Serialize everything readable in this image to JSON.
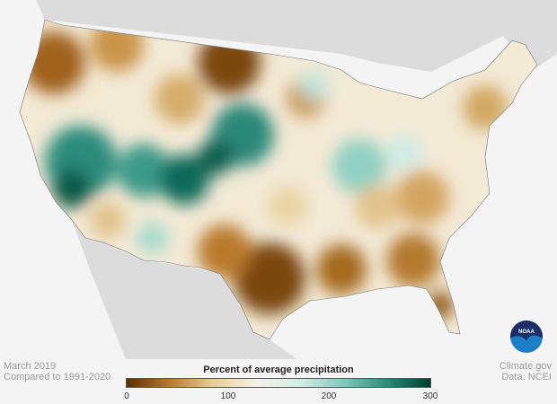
{
  "info": {
    "period": "March 2019",
    "baseline": "Compared to 1991-2020"
  },
  "credit": {
    "source": "Climate.gov",
    "data": "Data: NCEI"
  },
  "legend": {
    "title": "Percent of average precipitation",
    "ticks": [
      "0",
      "100",
      "200",
      "300"
    ],
    "range": [
      0,
      300
    ],
    "colors": [
      "#5a3004",
      "#b97a2a",
      "#e9cf95",
      "#f5f1e6",
      "#d4ede8",
      "#7fcabb",
      "#2b8c7c",
      "#003c30"
    ]
  },
  "logo": {
    "text": "NOAA"
  },
  "colors": {
    "dry": "#8c5410",
    "wet": "#0b6b5a",
    "land": "#dcdcdc",
    "background": "#f4f4f4"
  }
}
